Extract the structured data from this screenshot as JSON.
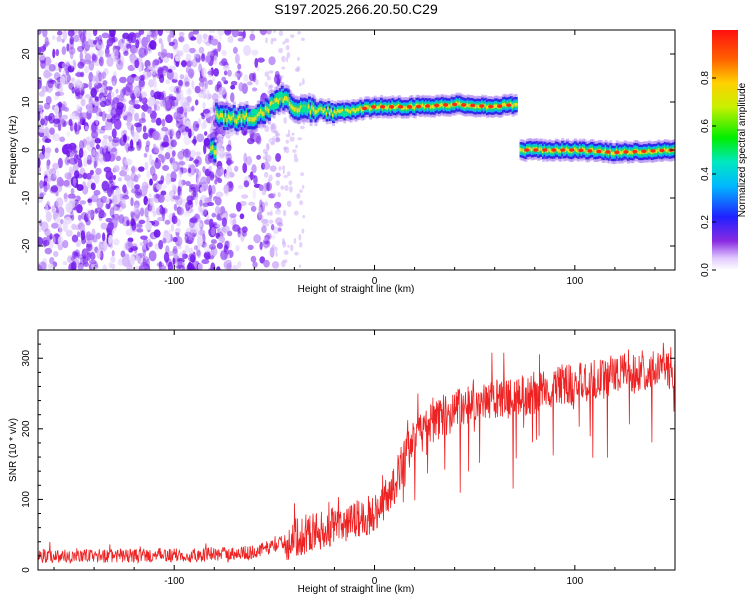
{
  "title": "S197.2025.266.20.50.C29",
  "colors": {
    "signal_line": "#ee2222",
    "axis": "#000000",
    "scatter": "#6a1fe0"
  },
  "chart_data": [
    {
      "type": "heatmap",
      "title": "S197.2025.266.20.50.C29",
      "xlabel": "Height of straight line (km)",
      "ylabel": "Frequency (Hz)",
      "xlim": [
        -168,
        150
      ],
      "ylim": [
        -25,
        25
      ],
      "x_ticks": [
        -100,
        0,
        100
      ],
      "x_tick_labels": [
        "-100",
        "0",
        "100"
      ],
      "y_ticks": [
        -20,
        -10,
        0,
        10,
        20
      ],
      "y_tick_labels": [
        "-20",
        "-10",
        "0",
        "10",
        "20"
      ],
      "noise_region_x": [
        -168,
        -55
      ],
      "ridge": [
        {
          "x": -80,
          "y": 7
        },
        {
          "x": -65,
          "y": 6.5
        },
        {
          "x": -55,
          "y": 8
        },
        {
          "x": -48,
          "y": 11
        },
        {
          "x": -40,
          "y": 9
        },
        {
          "x": -30,
          "y": 8
        },
        {
          "x": -15,
          "y": 8
        },
        {
          "x": 0,
          "y": 9
        },
        {
          "x": 20,
          "y": 9
        },
        {
          "x": 40,
          "y": 9.5
        },
        {
          "x": 60,
          "y": 9
        },
        {
          "x": 70,
          "y": 9.5
        },
        {
          "x": 72,
          "y": 0
        },
        {
          "x": 100,
          "y": 0
        },
        {
          "x": 120,
          "y": -0.5
        },
        {
          "x": 150,
          "y": 0
        }
      ],
      "colorbar": {
        "label": "Normalized spectral amplitude",
        "range": [
          0,
          1
        ],
        "ticks": [
          0.0,
          0.2,
          0.4,
          0.6,
          0.8
        ],
        "tick_labels": [
          "0.0",
          "0.2",
          "0.4",
          "0.6",
          "0.8"
        ]
      }
    },
    {
      "type": "line",
      "xlabel": "Height of straight line (km)",
      "ylabel": "SNR (10 * v/v)",
      "xlim": [
        -168,
        150
      ],
      "ylim": [
        0,
        340
      ],
      "x_ticks": [
        -100,
        0,
        100
      ],
      "x_tick_labels": [
        "-100",
        "0",
        "100"
      ],
      "y_ticks": [
        0,
        100,
        200,
        300
      ],
      "y_tick_labels": [
        "0",
        "100",
        "200",
        "300"
      ],
      "series": [
        {
          "name": "SNR",
          "x": [
            -168,
            -120,
            -80,
            -60,
            -50,
            -40,
            -30,
            -20,
            -10,
            0,
            10,
            15,
            20,
            30,
            40,
            60,
            80,
            100,
            120,
            140,
            150
          ],
          "values": [
            20,
            20,
            22,
            25,
            35,
            45,
            55,
            60,
            70,
            80,
            120,
            160,
            185,
            210,
            225,
            240,
            250,
            265,
            275,
            285,
            280
          ]
        }
      ]
    }
  ]
}
